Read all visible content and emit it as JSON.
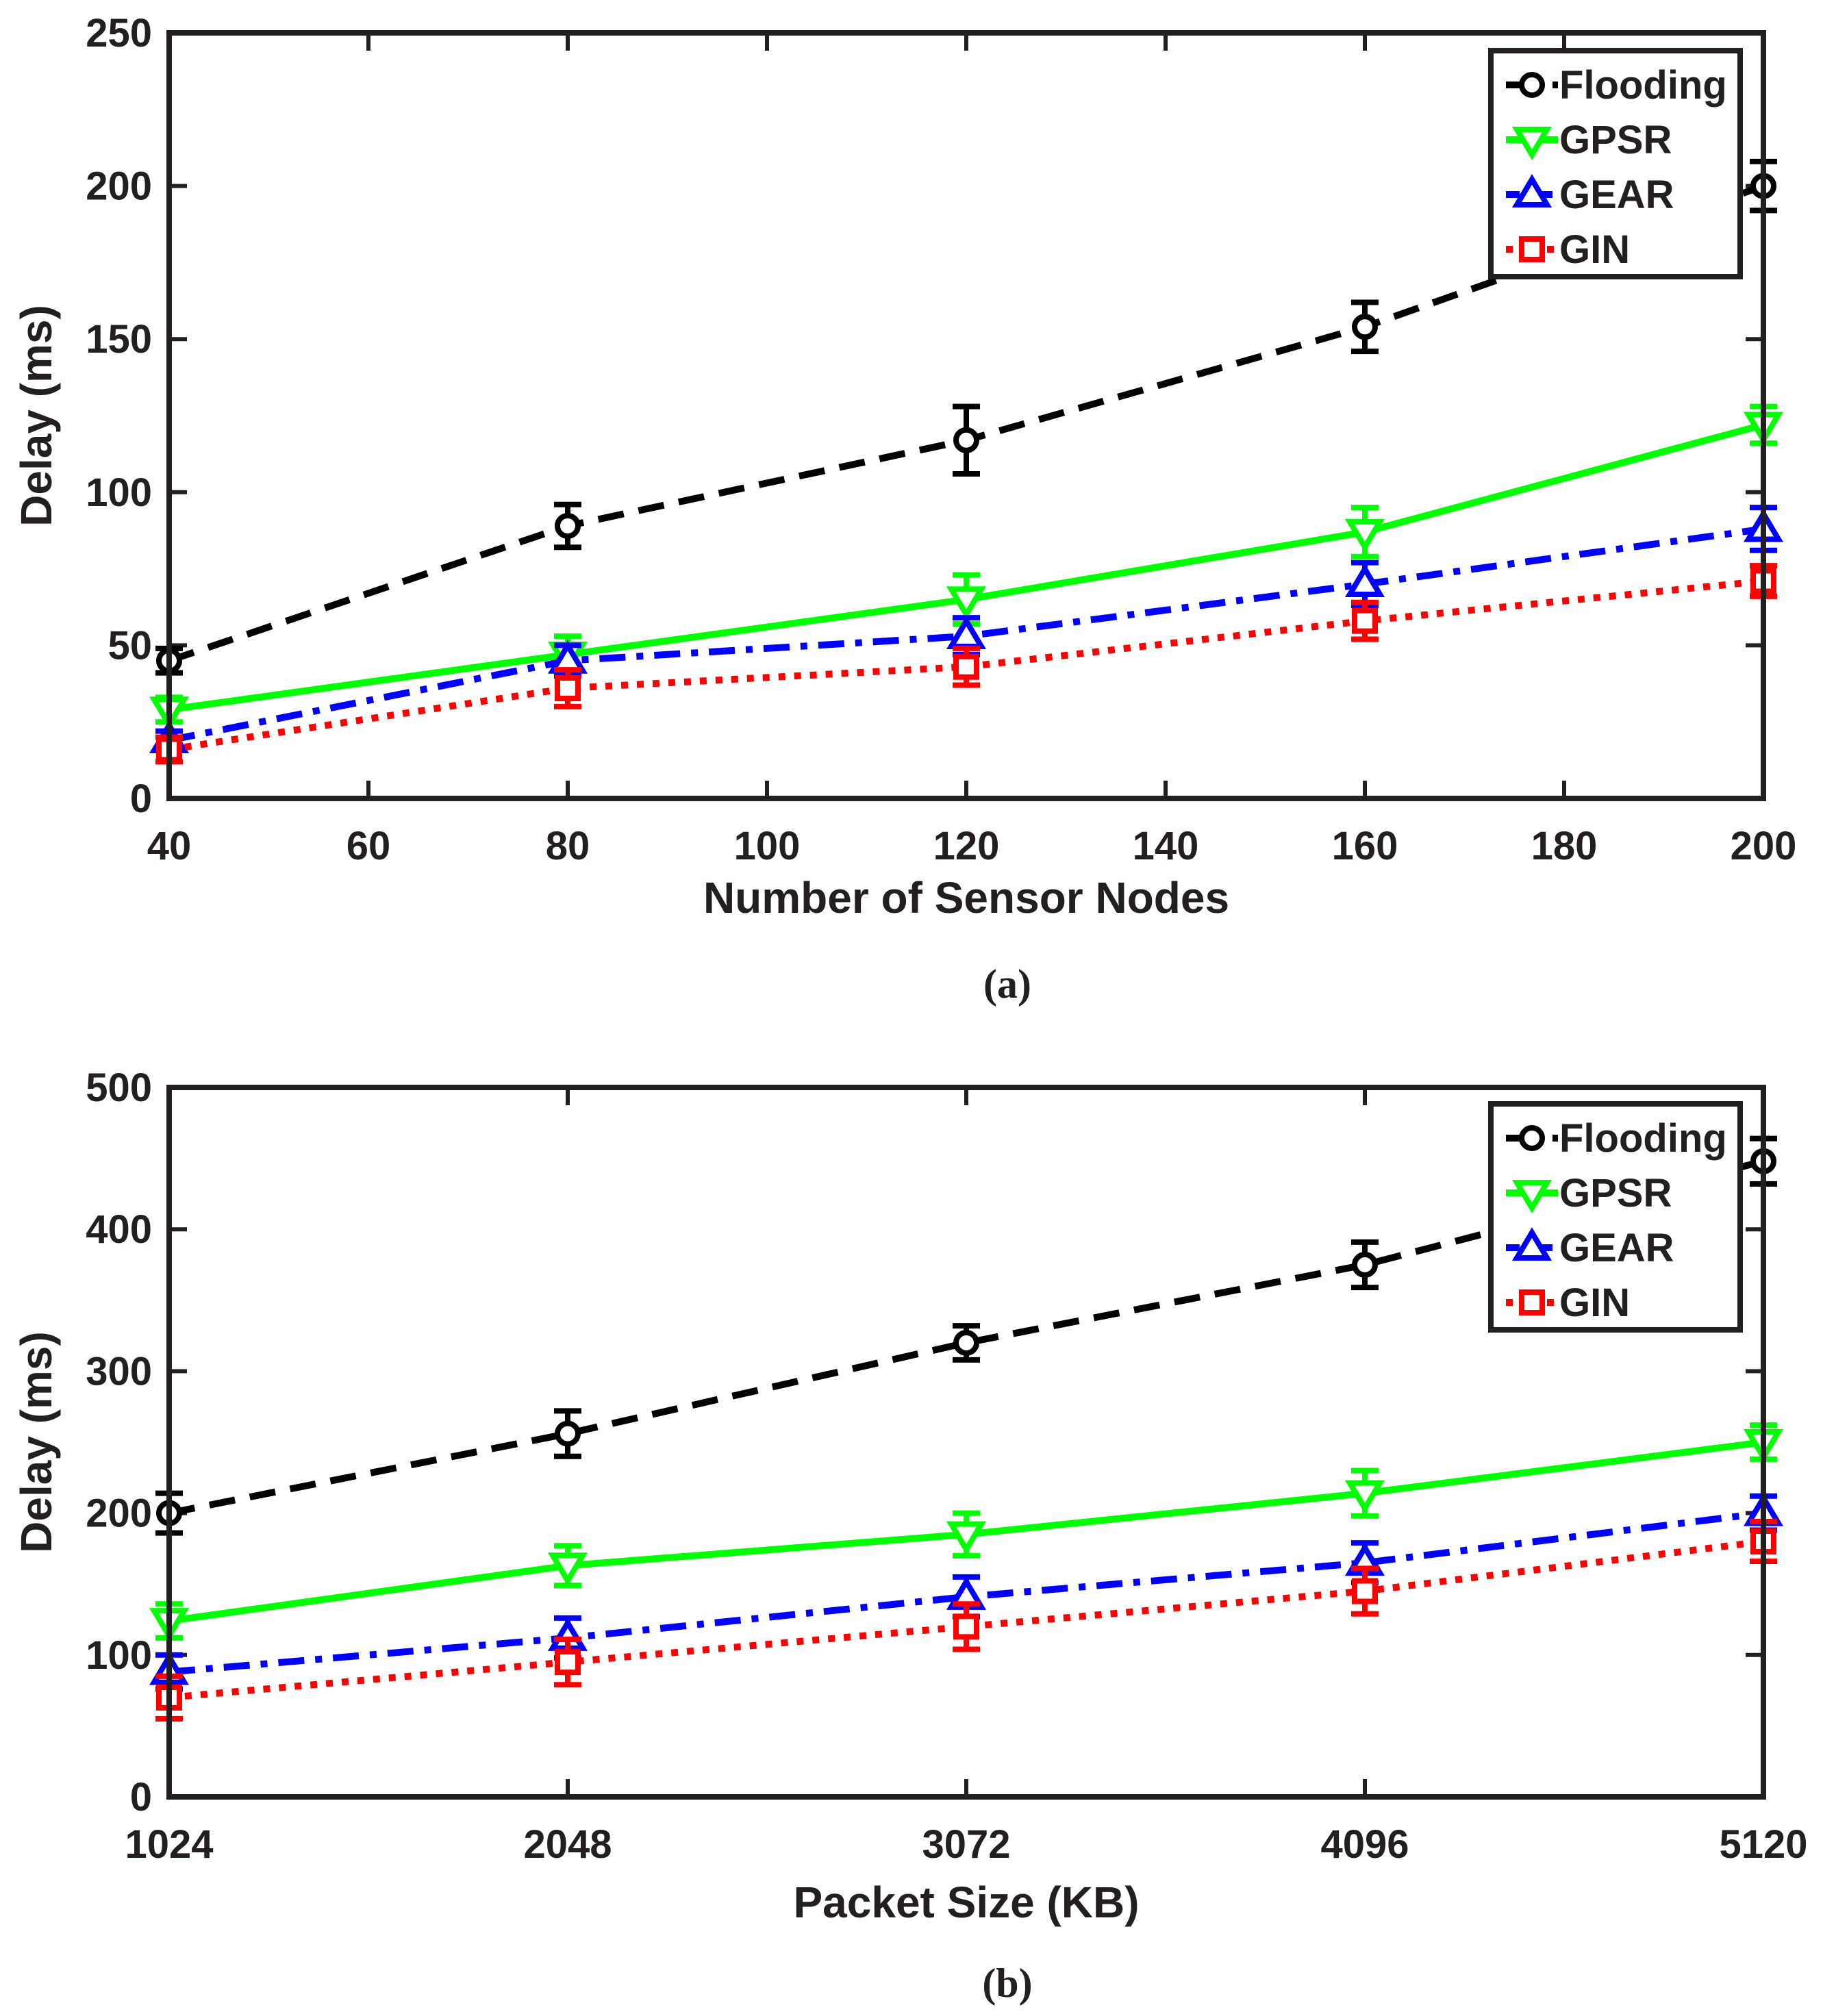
{
  "chart_data": [
    {
      "type": "line",
      "caption": "(a)",
      "xlabel": "Number of Sensor Nodes",
      "ylabel": "Delay  (ms)",
      "xlim": [
        40,
        200
      ],
      "ylim": [
        0,
        250
      ],
      "xticks": [
        40,
        60,
        80,
        100,
        120,
        140,
        160,
        180,
        200
      ],
      "xtick_labels": [
        "40",
        "60",
        "80",
        "100",
        "120",
        "140",
        "160",
        "180",
        "200"
      ],
      "yticks": [
        0,
        50,
        100,
        150,
        200,
        250
      ],
      "ytick_labels": [
        "0",
        "50",
        "100",
        "150",
        "200",
        "250"
      ],
      "x": [
        40,
        80,
        120,
        160,
        200
      ],
      "legend_position": "top-right",
      "grid": false,
      "series": [
        {
          "name": "Flooding",
          "color": "#000000",
          "marker": "circle",
          "line": "dashed",
          "values": [
            45,
            89,
            117,
            154,
            200
          ],
          "errors": [
            4,
            7,
            11,
            8,
            8
          ]
        },
        {
          "name": "GPSR",
          "color": "#00ff00",
          "marker": "triangle-down",
          "line": "solid",
          "values": [
            29,
            47,
            65,
            87,
            122
          ],
          "errors": [
            4,
            6,
            8,
            8,
            6
          ]
        },
        {
          "name": "GEAR",
          "color": "#0000ff",
          "marker": "triangle-up",
          "line": "dashdot",
          "values": [
            19,
            45,
            53,
            70,
            88
          ],
          "errors": [
            3,
            5,
            6,
            7,
            7
          ]
        },
        {
          "name": "GIN",
          "color": "#ff0000",
          "marker": "square",
          "line": "dotted",
          "values": [
            16,
            36,
            43,
            58,
            71
          ],
          "errors": [
            4,
            6,
            6,
            6,
            5
          ]
        }
      ]
    },
    {
      "type": "line",
      "caption": "(b)",
      "xlabel": "Packet Size (KB)",
      "ylabel": "Delay (ms)",
      "xlim": [
        1024,
        5120
      ],
      "ylim": [
        0,
        500
      ],
      "xticks": [
        1024,
        2048,
        3072,
        4096,
        5120
      ],
      "xtick_labels": [
        "1024",
        "2048",
        "3072",
        "4096",
        "5120"
      ],
      "yticks": [
        0,
        100,
        200,
        300,
        400,
        500
      ],
      "ytick_labels": [
        "0",
        "100",
        "200",
        "300",
        "400",
        "500"
      ],
      "x": [
        1024,
        2048,
        3072,
        4096,
        5120
      ],
      "legend_position": "top-right",
      "grid": false,
      "series": [
        {
          "name": "Flooding",
          "color": "#000000",
          "marker": "circle",
          "line": "dashed",
          "values": [
            200,
            256,
            320,
            375,
            448
          ],
          "errors": [
            14,
            16,
            12,
            16,
            16
          ]
        },
        {
          "name": "GPSR",
          "color": "#00ff00",
          "marker": "triangle-down",
          "line": "solid",
          "values": [
            124,
            163,
            185,
            214,
            250
          ],
          "errors": [
            12,
            14,
            15,
            16,
            12
          ]
        },
        {
          "name": "GEAR",
          "color": "#0000ff",
          "marker": "triangle-up",
          "line": "dashdot",
          "values": [
            88,
            112,
            141,
            165,
            200
          ],
          "errors": [
            12,
            14,
            14,
            14,
            12
          ]
        },
        {
          "name": "GIN",
          "color": "#ff0000",
          "marker": "square",
          "line": "dotted",
          "values": [
            70,
            95,
            120,
            145,
            180
          ],
          "errors": [
            15,
            16,
            16,
            16,
            14
          ]
        }
      ]
    }
  ]
}
